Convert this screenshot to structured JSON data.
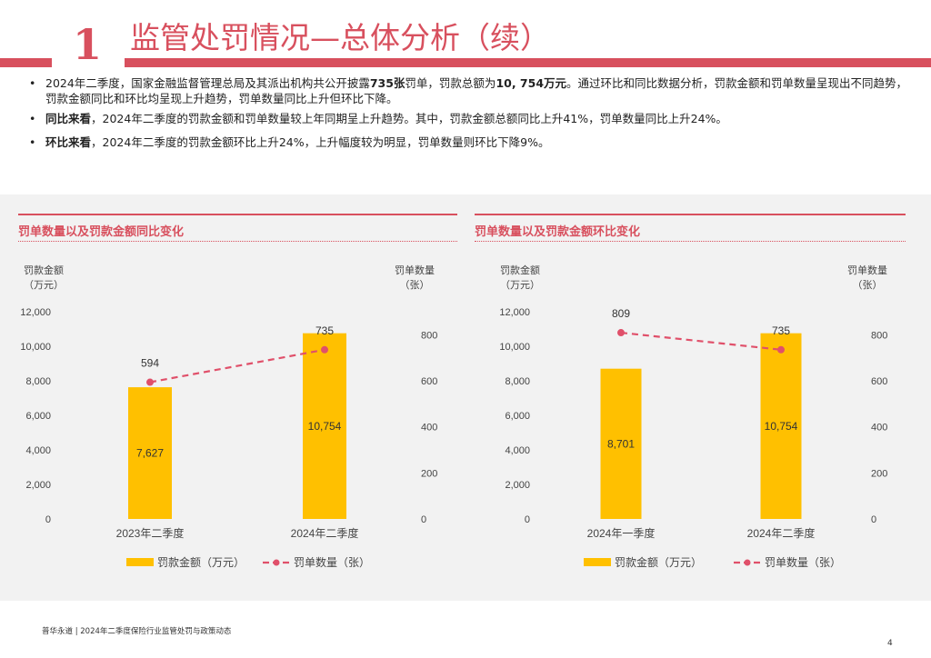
{
  "header": {
    "section_number": "1",
    "title": "监管处罚情况—总体分析（续）"
  },
  "bullets": {
    "b1_part1": "2024年二季度，国家金融监督管理总局及其派出机构共公开披露",
    "b1_bold1": "735张",
    "b1_part2": "罚单，罚款总额为",
    "b1_bold2": "10, 754万元",
    "b1_part3": "。通过环比和同比数据分析，罚款金额和罚单数量呈现出不同趋势，罚款金额同比和环比均呈现上升趋势，罚单数量同比上升但环比下降。",
    "b2_bold": "同比来看",
    "b2_text": "，2024年二季度的罚款金额和罚单数量较上年同期呈上升趋势。其中，罚款金额总额同比上升41%，罚单数量同比上升24%。",
    "b3_bold": "环比来看",
    "b3_text": "，2024年二季度的罚款金额环比上升24%，上升幅度较为明显，罚单数量则环比下降9%。"
  },
  "left_panel": {
    "title": "罚单数量以及罚款金额同比变化",
    "y_left_title_line1": "罚款金额",
    "y_left_title_line2": "（万元）",
    "y_right_title_line1": "罚单数量",
    "y_right_title_line2": "（张）"
  },
  "right_panel": {
    "title": "罚单数量以及罚款金额环比变化",
    "y_left_title_line1": "罚款金额",
    "y_left_title_line2": "（万元）",
    "y_right_title_line1": "罚单数量",
    "y_right_title_line2": "（张）"
  },
  "chart_data": [
    {
      "type": "bar",
      "title": "罚单数量以及罚款金额同比变化",
      "categories": [
        "2023年二季度",
        "2024年二季度"
      ],
      "series": [
        {
          "name": "罚款金额（万元）",
          "type": "bar",
          "axis": "left",
          "values": [
            7627,
            10754
          ],
          "labels": [
            "7,627",
            "10,754"
          ],
          "color": "#ffc000"
        },
        {
          "name": "罚单数量（张）",
          "type": "line",
          "axis": "right",
          "values": [
            594,
            735
          ],
          "labels": [
            "594",
            "735"
          ],
          "color": "#e0506a"
        }
      ],
      "ylim_left": [
        0,
        12000
      ],
      "yticks_left": [
        "0",
        "2,000",
        "4,000",
        "6,000",
        "8,000",
        "10,000",
        "12,000"
      ],
      "ylim_right": [
        0,
        900
      ],
      "yticks_right": [
        "0",
        "200",
        "400",
        "600",
        "800"
      ]
    },
    {
      "type": "bar",
      "title": "罚单数量以及罚款金额环比变化",
      "categories": [
        "2024年一季度",
        "2024年二季度"
      ],
      "series": [
        {
          "name": "罚款金额（万元）",
          "type": "bar",
          "axis": "left",
          "values": [
            8701,
            10754
          ],
          "labels": [
            "8,701",
            "10,754"
          ],
          "color": "#ffc000"
        },
        {
          "name": "罚单数量（张）",
          "type": "line",
          "axis": "right",
          "values": [
            809,
            735
          ],
          "labels": [
            "809",
            "735"
          ],
          "color": "#e0506a"
        }
      ],
      "ylim_left": [
        0,
        12000
      ],
      "yticks_left": [
        "0",
        "2,000",
        "4,000",
        "6,000",
        "8,000",
        "10,000",
        "12,000"
      ],
      "ylim_right": [
        0,
        900
      ],
      "yticks_right": [
        "0",
        "200",
        "400",
        "600",
        "800"
      ]
    }
  ],
  "footer": {
    "text": "普华永道 | 2024年二季度保险行业监管处罚与政策动态",
    "page": "4"
  }
}
